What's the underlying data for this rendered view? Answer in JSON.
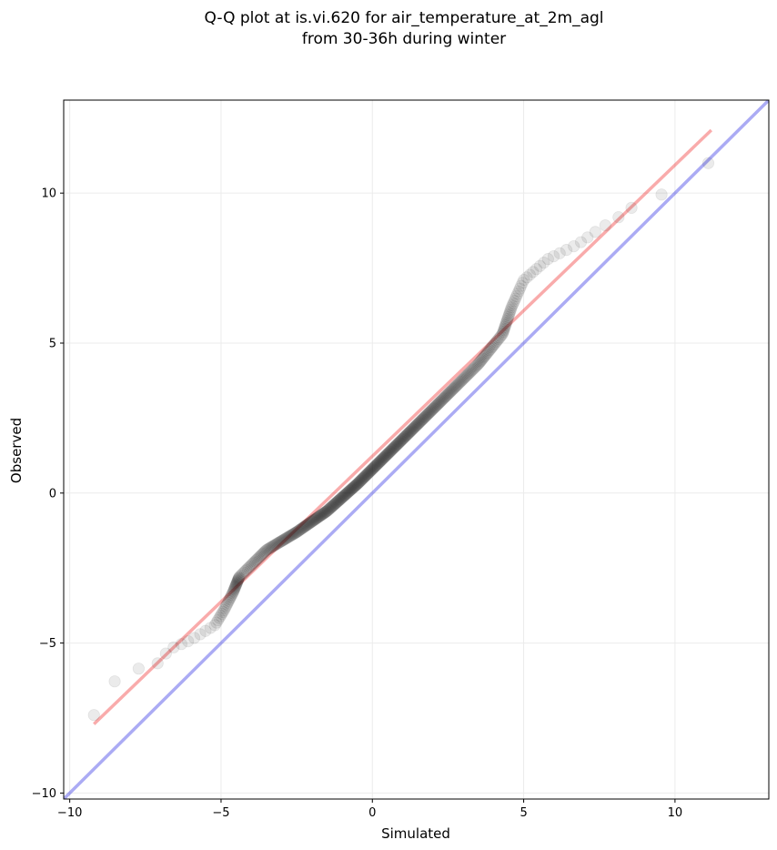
{
  "chart_data": {
    "type": "scatter",
    "title": "Q-Q plot at is.vi.620 for air_temperature_at_2m_agl\nfrom 30-36h during winter",
    "title_lines": [
      "Q-Q plot at is.vi.620 for air_temperature_at_2m_agl",
      "from 30-36h during winter"
    ],
    "xlabel": "Simulated",
    "ylabel": "Observed",
    "xlim": [
      -10.2,
      13.1
    ],
    "ylim": [
      -10.2,
      13.1
    ],
    "xticks": [
      -10,
      -5,
      0,
      5,
      10
    ],
    "yticks": [
      -10,
      -5,
      0,
      5,
      10
    ],
    "xtick_labels": [
      "−10",
      "−5",
      "0",
      "5",
      "10"
    ],
    "ytick_labels": [
      "−10",
      "−5",
      "0",
      "5",
      "10"
    ],
    "grid": true,
    "colors": {
      "points": "#000000",
      "fit_line": "#ee0000",
      "identity_line": "#0000dd"
    },
    "identity_line": {
      "x": [
        -10.2,
        13.1
      ],
      "y": [
        -10.2,
        13.1
      ]
    },
    "fit_line": {
      "x": [
        -9.2,
        11.2
      ],
      "y": [
        -7.7,
        12.1
      ]
    },
    "quantile_anchors": [
      [
        -9.2,
        -7.4
      ],
      [
        -9.0,
        -6.9
      ],
      [
        -8.7,
        -6.5
      ],
      [
        -8.2,
        -5.9
      ],
      [
        -7.2,
        -5.8
      ],
      [
        -6.7,
        -5.2
      ],
      [
        -6.0,
        -4.9
      ],
      [
        -5.2,
        -4.4
      ],
      [
        -4.9,
        -3.9
      ],
      [
        -4.6,
        -3.3
      ],
      [
        -4.4,
        -2.8
      ],
      [
        -3.5,
        -1.9
      ],
      [
        -2.5,
        -1.3
      ],
      [
        -1.5,
        -0.6
      ],
      [
        -0.5,
        0.3
      ],
      [
        0.5,
        1.3
      ],
      [
        1.5,
        2.3
      ],
      [
        2.5,
        3.3
      ],
      [
        3.5,
        4.3
      ],
      [
        4.3,
        5.3
      ],
      [
        4.6,
        6.2
      ],
      [
        5.0,
        7.1
      ],
      [
        5.8,
        7.8
      ],
      [
        6.8,
        8.3
      ],
      [
        7.5,
        8.8
      ],
      [
        8.3,
        9.3
      ],
      [
        8.8,
        9.7
      ],
      [
        10.0,
        10.1
      ],
      [
        10.6,
        10.6
      ],
      [
        11.1,
        11.0
      ]
    ],
    "n_points": 420
  }
}
